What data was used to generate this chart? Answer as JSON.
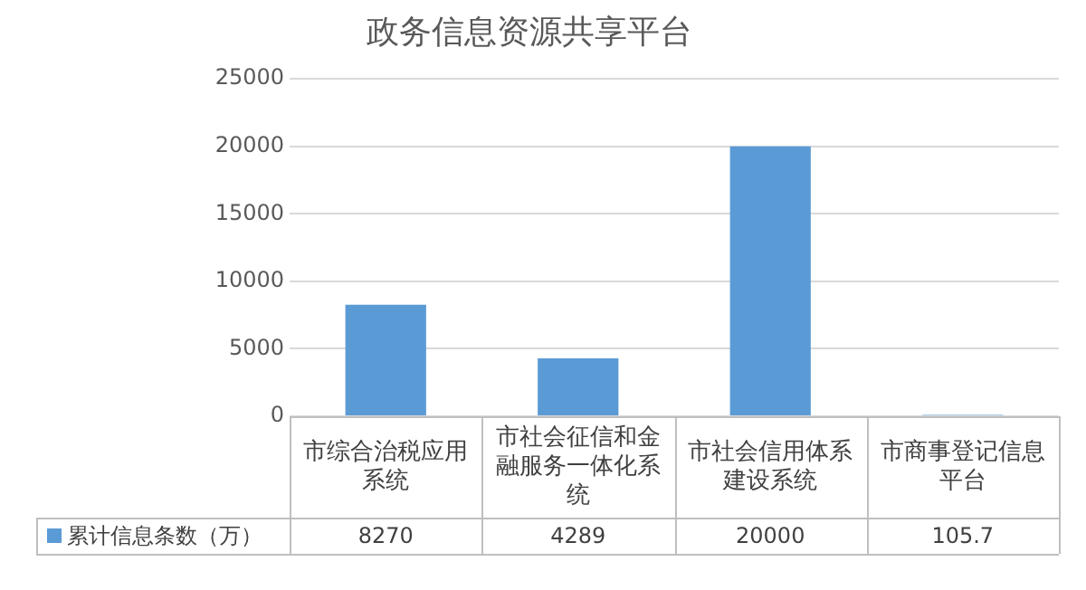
{
  "chart_data": {
    "type": "bar",
    "title": "政务信息资源共享平台",
    "categories": [
      "市综合治税应用系统",
      "市社会征信和金融服务一体化系统",
      "市社会信用体系建设系统",
      "市商事登记信息平台"
    ],
    "series": [
      {
        "name": "累计信息条数（万）",
        "color": "#5b9bd5",
        "values": [
          8270,
          4289,
          20000,
          105.7
        ]
      }
    ],
    "ylim": [
      0,
      25000
    ],
    "yticks": [
      0,
      5000,
      10000,
      15000,
      20000,
      25000
    ],
    "grid": "y",
    "data_labels": true
  }
}
